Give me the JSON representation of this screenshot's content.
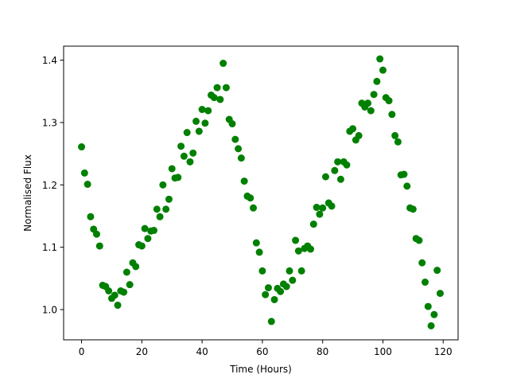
{
  "chart_data": {
    "type": "scatter",
    "title": "",
    "xlabel": "Time (Hours)",
    "ylabel": "Normalised Flux",
    "xlim": [
      -5.95,
      124.95
    ],
    "ylim": [
      0.9515,
      1.4225
    ],
    "xticks": [
      0,
      20,
      40,
      60,
      80,
      100,
      120
    ],
    "xtick_labels": [
      "0",
      "20",
      "40",
      "60",
      "80",
      "100",
      "120"
    ],
    "yticks": [
      1.0,
      1.1,
      1.2,
      1.3,
      1.4
    ],
    "ytick_labels": [
      "1.0",
      "1.1",
      "1.2",
      "1.3",
      "1.4"
    ],
    "grid": false,
    "legend": "none",
    "marker_color": "#008000",
    "series": [
      {
        "points": [
          [
            0,
            1.261
          ],
          [
            1,
            1.219
          ],
          [
            2,
            1.201
          ],
          [
            3,
            1.149
          ],
          [
            4,
            1.129
          ],
          [
            5,
            1.121
          ],
          [
            6,
            1.102
          ],
          [
            7,
            1.039
          ],
          [
            8,
            1.037
          ],
          [
            9,
            1.03
          ],
          [
            10,
            1.018
          ],
          [
            11,
            1.023
          ],
          [
            12,
            1.007
          ],
          [
            13,
            1.03
          ],
          [
            14,
            1.028
          ],
          [
            15,
            1.06
          ],
          [
            16,
            1.04
          ],
          [
            17,
            1.075
          ],
          [
            18,
            1.069
          ],
          [
            19,
            1.104
          ],
          [
            20,
            1.102
          ],
          [
            21,
            1.13
          ],
          [
            22,
            1.114
          ],
          [
            23,
            1.126
          ],
          [
            24,
            1.127
          ],
          [
            25,
            1.161
          ],
          [
            26,
            1.149
          ],
          [
            27,
            1.2
          ],
          [
            28,
            1.161
          ],
          [
            29,
            1.177
          ],
          [
            30,
            1.226
          ],
          [
            31,
            1.211
          ],
          [
            32,
            1.212
          ],
          [
            33,
            1.262
          ],
          [
            34,
            1.246
          ],
          [
            35,
            1.284
          ],
          [
            36,
            1.237
          ],
          [
            37,
            1.251
          ],
          [
            38,
            1.302
          ],
          [
            39,
            1.286
          ],
          [
            40,
            1.321
          ],
          [
            41,
            1.299
          ],
          [
            42,
            1.319
          ],
          [
            43,
            1.344
          ],
          [
            44,
            1.34
          ],
          [
            45,
            1.356
          ],
          [
            46,
            1.337
          ],
          [
            47,
            1.395
          ],
          [
            48,
            1.356
          ],
          [
            49,
            1.305
          ],
          [
            50,
            1.298
          ],
          [
            51,
            1.273
          ],
          [
            52,
            1.258
          ],
          [
            53,
            1.243
          ],
          [
            54,
            1.206
          ],
          [
            55,
            1.182
          ],
          [
            56,
            1.179
          ],
          [
            57,
            1.163
          ],
          [
            58,
            1.107
          ],
          [
            59,
            1.092
          ],
          [
            60,
            1.062
          ],
          [
            61,
            1.024
          ],
          [
            62,
            1.035
          ],
          [
            63,
            0.981
          ],
          [
            64,
            1.016
          ],
          [
            65,
            1.034
          ],
          [
            66,
            1.029
          ],
          [
            67,
            1.041
          ],
          [
            68,
            1.037
          ],
          [
            69,
            1.062
          ],
          [
            70,
            1.047
          ],
          [
            71,
            1.111
          ],
          [
            72,
            1.094
          ],
          [
            73,
            1.062
          ],
          [
            74,
            1.098
          ],
          [
            75,
            1.102
          ],
          [
            76,
            1.097
          ],
          [
            77,
            1.137
          ],
          [
            78,
            1.164
          ],
          [
            79,
            1.153
          ],
          [
            80,
            1.163
          ],
          [
            81,
            1.213
          ],
          [
            82,
            1.171
          ],
          [
            83,
            1.166
          ],
          [
            84,
            1.223
          ],
          [
            85,
            1.237
          ],
          [
            86,
            1.209
          ],
          [
            87,
            1.237
          ],
          [
            88,
            1.232
          ],
          [
            89,
            1.286
          ],
          [
            90,
            1.29
          ],
          [
            91,
            1.272
          ],
          [
            92,
            1.279
          ],
          [
            93,
            1.331
          ],
          [
            94,
            1.325
          ],
          [
            95,
            1.331
          ],
          [
            96,
            1.319
          ],
          [
            97,
            1.345
          ],
          [
            98,
            1.366
          ],
          [
            99,
            1.402
          ],
          [
            100,
            1.384
          ],
          [
            101,
            1.34
          ],
          [
            102,
            1.335
          ],
          [
            103,
            1.313
          ],
          [
            104,
            1.279
          ],
          [
            105,
            1.269
          ],
          [
            106,
            1.216
          ],
          [
            107,
            1.217
          ],
          [
            108,
            1.198
          ],
          [
            109,
            1.163
          ],
          [
            110,
            1.161
          ],
          [
            111,
            1.114
          ],
          [
            112,
            1.111
          ],
          [
            113,
            1.075
          ],
          [
            114,
            1.044
          ],
          [
            115,
            1.005
          ],
          [
            116,
            0.974
          ],
          [
            117,
            0.992
          ],
          [
            118,
            1.063
          ],
          [
            119,
            1.026
          ]
        ]
      }
    ]
  }
}
